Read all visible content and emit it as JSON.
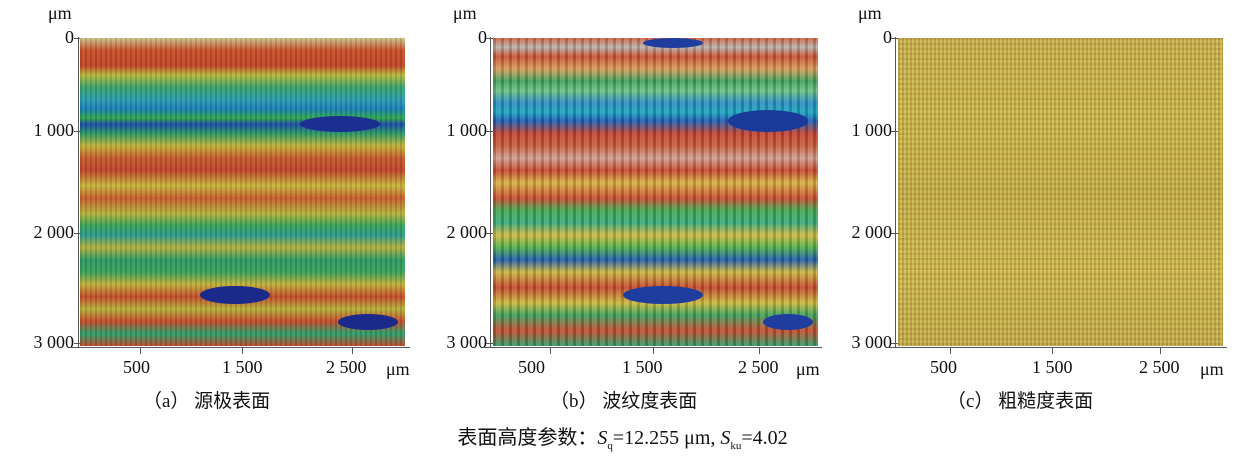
{
  "panels": [
    {
      "unit_top": "μm",
      "y_ticks": [
        "0",
        "1 000",
        "2 000",
        "3 000"
      ],
      "x_ticks": [
        "500",
        "1 500",
        "2 500"
      ],
      "x_unit": "μm",
      "caption": "（a） 源极表面"
    },
    {
      "unit_top": "μm",
      "y_ticks": [
        "0",
        "1 000",
        "2 000",
        "3 000"
      ],
      "x_ticks": [
        "500",
        "1 500",
        "2 500"
      ],
      "x_unit": "μm",
      "caption": "（b） 波纹度表面"
    },
    {
      "unit_top": "μm",
      "y_ticks": [
        "0",
        "1 000",
        "2 000",
        "3 000"
      ],
      "x_ticks": [
        "500",
        "1 500",
        "2 500"
      ],
      "x_unit": "μm",
      "caption": "（c） 粗糙度表面"
    }
  ],
  "params": {
    "prefix": "表面高度参数：",
    "sq_symbol": "S",
    "sq_sub": "q",
    "sq_value": "=12.255 μm,",
    "sku_symbol": "S",
    "sku_sub": "ku",
    "sku_value": "=4.02"
  }
}
